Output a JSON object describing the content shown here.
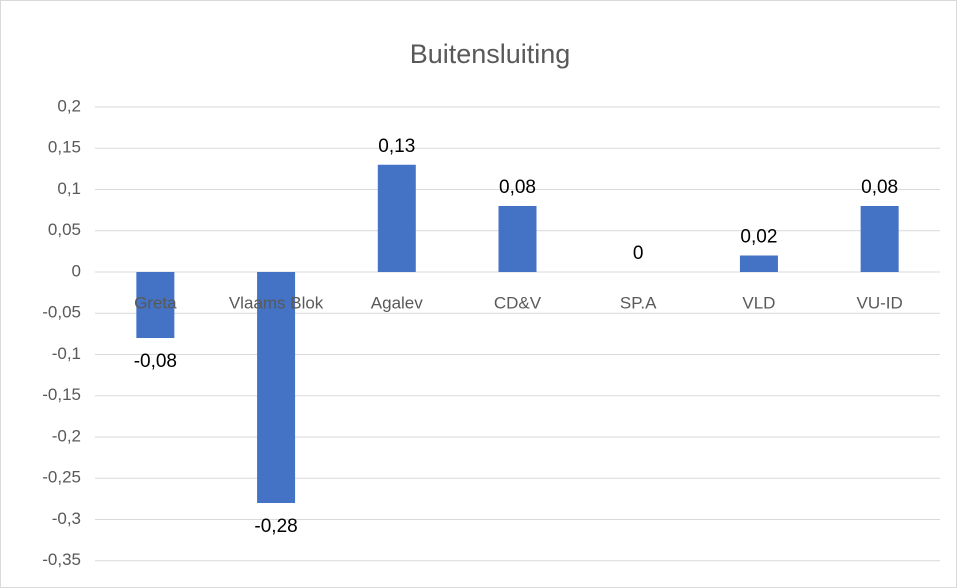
{
  "chart_data": {
    "type": "bar",
    "title": "Buitensluiting",
    "categories": [
      "Greta",
      "Vlaams Blok",
      "Agalev",
      "CD&V",
      "SP.A",
      "VLD",
      "VU-ID"
    ],
    "values": [
      -0.08,
      -0.28,
      0.13,
      0.08,
      0,
      0.02,
      0.08
    ],
    "value_labels": [
      "-0,08",
      "-0,28",
      "0,13",
      "0,08",
      "0",
      "0,02",
      "0,08"
    ],
    "color": "#4472c4",
    "ylim": [
      -0.35,
      0.2
    ],
    "yticks": [
      {
        "value": -0.35,
        "label": "-0,35"
      },
      {
        "value": -0.3,
        "label": "-0,3"
      },
      {
        "value": -0.25,
        "label": "-0,25"
      },
      {
        "value": -0.2,
        "label": "-0,2"
      },
      {
        "value": -0.15,
        "label": "-0,15"
      },
      {
        "value": -0.1,
        "label": "-0,1"
      },
      {
        "value": -0.05,
        "label": "-0,05"
      },
      0,
      {
        "value": 0.05,
        "label": "0,05"
      },
      {
        "value": 0.1,
        "label": "0,1"
      },
      {
        "value": 0.15,
        "label": "0,15"
      },
      {
        "value": 0.2,
        "label": "0,2"
      }
    ],
    "grid": true
  }
}
